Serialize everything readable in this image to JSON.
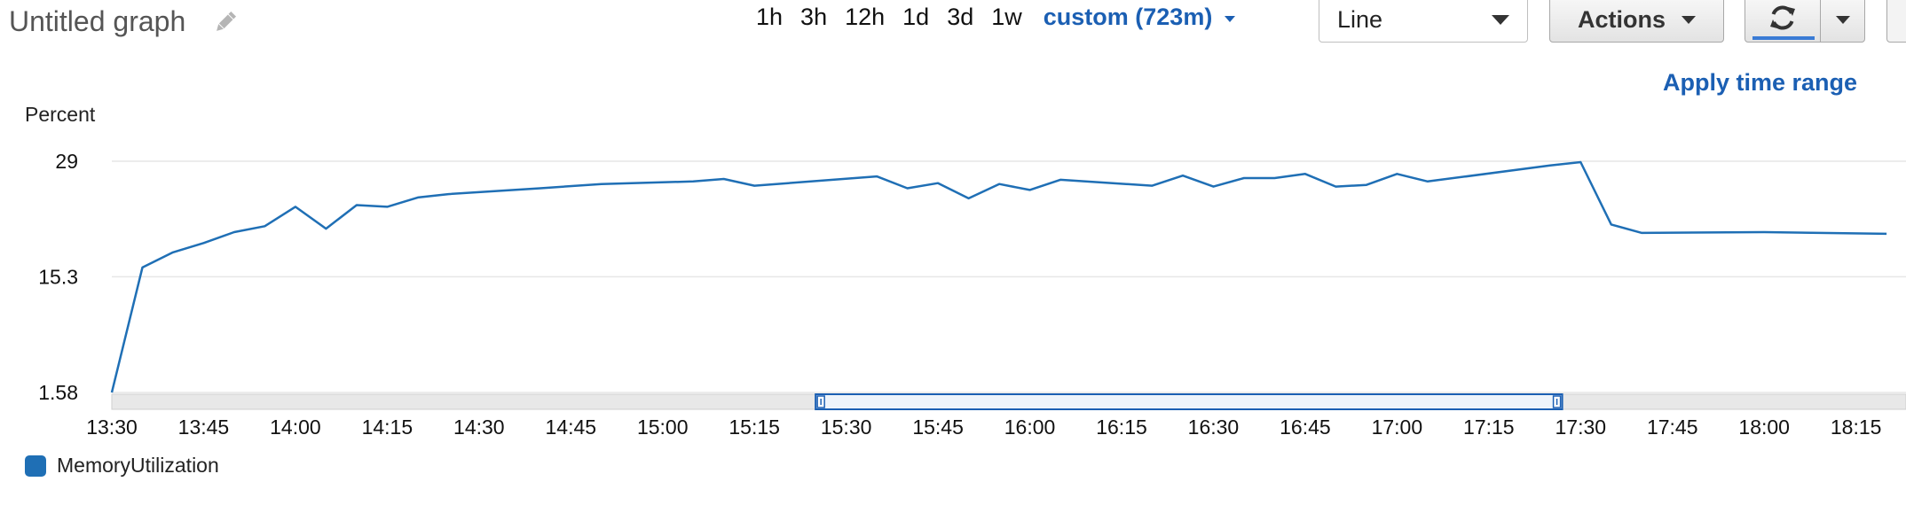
{
  "header": {
    "title": "Untitled graph",
    "ranges": [
      "1h",
      "3h",
      "12h",
      "1d",
      "3d",
      "1w"
    ],
    "custom_range": "custom (723m)",
    "chart_type_select": "Line",
    "actions_label": "Actions",
    "apply_time_range": "Apply time range"
  },
  "icons": {
    "edit": "pencil-icon",
    "refresh": "refresh-icon",
    "dropdown": "chevron-down-icon"
  },
  "colors": {
    "series": "#1f6fb5",
    "accent": "#1b5fb3",
    "selection": "#1b5fb3"
  },
  "chart_data": {
    "type": "line",
    "ylabel": "Percent",
    "yticks": [
      "29",
      "15.3",
      "1.58"
    ],
    "ylim": [
      1.58,
      29
    ],
    "xticks": [
      "13:30",
      "13:45",
      "14:00",
      "14:15",
      "14:30",
      "14:45",
      "15:00",
      "15:15",
      "15:30",
      "15:45",
      "16:00",
      "16:15",
      "16:30",
      "16:45",
      "17:00",
      "17:15",
      "17:30",
      "17:45",
      "18:00",
      "18:15"
    ],
    "xlim": [
      "13:30",
      "18:20"
    ],
    "selection": [
      "15:25",
      "17:27"
    ],
    "series": [
      {
        "name": "MemoryUtilization",
        "x": [
          "13:30",
          "13:35",
          "13:40",
          "13:45",
          "13:50",
          "13:55",
          "14:00",
          "14:05",
          "14:10",
          "14:15",
          "14:20",
          "14:25",
          "14:40",
          "14:50",
          "15:05",
          "15:10",
          "15:15",
          "15:35",
          "15:40",
          "15:45",
          "15:50",
          "15:55",
          "16:00",
          "16:05",
          "16:20",
          "16:25",
          "16:30",
          "16:35",
          "16:40",
          "16:45",
          "16:50",
          "16:55",
          "17:00",
          "17:05",
          "17:25",
          "17:30",
          "17:35",
          "17:40",
          "18:00",
          "18:20"
        ],
        "values": [
          1.58,
          16.4,
          18.2,
          19.3,
          20.6,
          21.3,
          23.6,
          21.0,
          23.8,
          23.6,
          24.7,
          25.1,
          25.8,
          26.3,
          26.6,
          26.9,
          26.1,
          27.2,
          25.8,
          26.4,
          24.6,
          26.3,
          25.6,
          26.8,
          26.1,
          27.3,
          26.0,
          27.0,
          27.0,
          27.5,
          26.0,
          26.2,
          27.5,
          26.6,
          28.5,
          28.9,
          21.5,
          20.5,
          20.6,
          20.4
        ]
      }
    ]
  }
}
